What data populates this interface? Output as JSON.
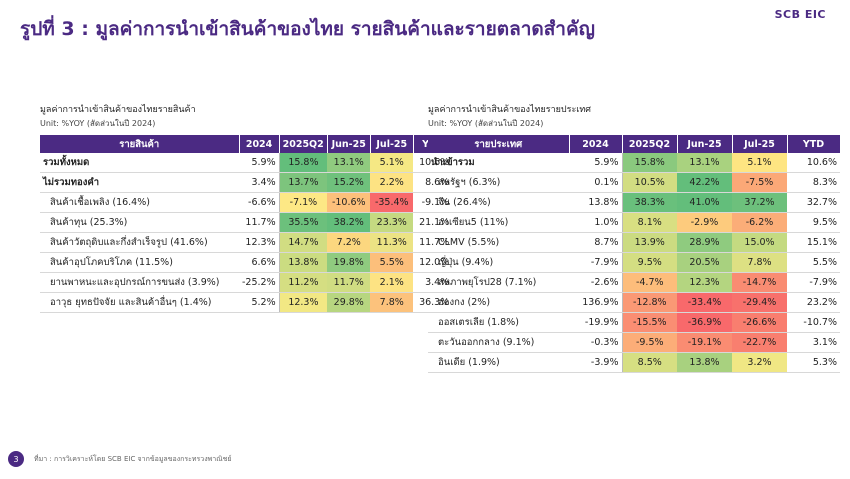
{
  "header": {
    "title": "รูปที่ 3 : มูลค่าการนำเข้าสินค้าของไทย รายสินค้าและรายตลาดสำคัญ",
    "logo": "SCB EIC"
  },
  "left_table": {
    "caption": "มูลค่าการนำเข้าสินค้าของไทยรายสินค้า",
    "unit": "Unit: %YOY (สัดส่วนในปี 2024)",
    "headers": [
      "รายสินค้า",
      "2024",
      "2025Q2",
      "Jun-25",
      "Jul-25",
      "YTD"
    ],
    "rows": [
      {
        "label": "รวมทั้งหมด",
        "bold": true,
        "v2024": "5.9%",
        "q2": "15.8%",
        "jun": "13.1%",
        "jul": "5.1%",
        "ytd": "10.6%",
        "c": [
          "#63be7b",
          "#90cb7f",
          "#f5e884"
        ]
      },
      {
        "label": "ไม่รวมทองคำ",
        "bold": true,
        "v2024": "3.4%",
        "q2": "13.7%",
        "jun": "15.2%",
        "jul": "2.2%",
        "ytd": "8.6%",
        "c": [
          "#7dc47d",
          "#6fc17c",
          "#fde383"
        ]
      },
      {
        "label": "สินค้าเชื้อเพลิง (16.4%)",
        "bold": false,
        "v2024": "-6.6%",
        "q2": "-7.1%",
        "jun": "-10.6%",
        "jul": "-35.4%",
        "ytd": "-9.1%",
        "c": [
          "#fde885",
          "#fcc07b",
          "#f8696b"
        ]
      },
      {
        "label": "สินค้าทุน (25.3%)",
        "bold": false,
        "v2024": "11.7%",
        "q2": "35.5%",
        "jun": "38.2%",
        "jul": "23.3%",
        "ytd": "21.1%",
        "c": [
          "#6cc07c",
          "#63be7b",
          "#c5da81"
        ]
      },
      {
        "label": "สินค้าวัตถุดิบและกึ่งสำเร็จรูป (41.6%)",
        "bold": false,
        "v2024": "12.3%",
        "q2": "14.7%",
        "jun": "7.2%",
        "jul": "11.3%",
        "ytd": "11.7%",
        "c": [
          "#d1dd82",
          "#fcd77f",
          "#ece384"
        ]
      },
      {
        "label": "สินค้าอุปโภคบริโภค (11.5%)",
        "bold": false,
        "v2024": "6.6%",
        "q2": "13.8%",
        "jun": "19.8%",
        "jul": "5.5%",
        "ytd": "12.0%",
        "c": [
          "#cbdc81",
          "#8fcb7f",
          "#fcbf7b"
        ]
      },
      {
        "label": "ยานพาหนะและอุปกรณ์การขนส่ง (3.9%)",
        "bold": false,
        "v2024": "-25.2%",
        "q2": "11.2%",
        "jun": "11.7%",
        "jul": "2.1%",
        "ytd": "3.4%",
        "c": [
          "#d5de82",
          "#d0dd82",
          "#fde383"
        ]
      },
      {
        "label": "อาวุธ ยุทธปัจจัย และสินค้าอื่นๆ (1.4%)",
        "bold": false,
        "v2024": "5.2%",
        "q2": "12.3%",
        "jun": "29.8%",
        "jul": "7.8%",
        "ytd": "36.3%",
        "c": [
          "#f2e884",
          "#b7d680",
          "#fcc27c"
        ]
      }
    ]
  },
  "right_table": {
    "caption": "มูลค่าการนำเข้าสินค้าของไทยรายประเทศ",
    "unit": "Unit: %YOY (สัดส่วนในปี 2024)",
    "headers": [
      "รายประเทศ",
      "2024",
      "2025Q2",
      "Jun-25",
      "Jul-25",
      "YTD"
    ],
    "rows": [
      {
        "label": "นำเข้ารวม",
        "bold": true,
        "v2024": "5.9%",
        "q2": "15.8%",
        "jun": "13.1%",
        "jul": "5.1%",
        "ytd": "10.6%",
        "c": [
          "#8ac97e",
          "#a9d27f",
          "#fee582"
        ]
      },
      {
        "label": "สหรัฐฯ (6.3%)",
        "bold": false,
        "v2024": "0.1%",
        "q2": "10.5%",
        "jun": "42.2%",
        "jul": "-7.5%",
        "ytd": "8.3%",
        "c": [
          "#d2dd82",
          "#63be7b",
          "#fba877"
        ]
      },
      {
        "label": "จีน (26.4%)",
        "bold": false,
        "v2024": "13.8%",
        "q2": "38.3%",
        "jun": "41.0%",
        "jul": "37.2%",
        "ytd": "32.7%",
        "c": [
          "#69c07c",
          "#63be7b",
          "#6dc07c"
        ]
      },
      {
        "label": "อาเซียน5 (11%)",
        "bold": false,
        "v2024": "1.0%",
        "q2": "8.1%",
        "jun": "-2.9%",
        "jul": "-6.2%",
        "ytd": "9.5%",
        "c": [
          "#d8df82",
          "#fdcb7d",
          "#fbad78"
        ]
      },
      {
        "label": "CLMV (5.5%)",
        "bold": false,
        "v2024": "8.7%",
        "q2": "13.9%",
        "jun": "28.9%",
        "jul": "15.0%",
        "ytd": "15.1%",
        "c": [
          "#cbdb81",
          "#8fcb7f",
          "#c4da81"
        ]
      },
      {
        "label": "ญี่ปุ่น (9.4%)",
        "bold": false,
        "v2024": "-7.9%",
        "q2": "9.5%",
        "jun": "20.5%",
        "jul": "7.8%",
        "ytd": "5.5%",
        "c": [
          "#d4de82",
          "#a8d17f",
          "#dde083"
        ]
      },
      {
        "label": "สหภาพยุโรป28 (7.1%)",
        "bold": false,
        "v2024": "-2.6%",
        "q2": "-4.7%",
        "jun": "12.3%",
        "jul": "-14.7%",
        "ytd": "-7.9%",
        "c": [
          "#fdbd7b",
          "#b4d580",
          "#f98c72"
        ]
      },
      {
        "label": "ฮ่องกง (2%)",
        "bold": false,
        "v2024": "136.9%",
        "q2": "-12.8%",
        "jun": "-33.4%",
        "jul": "-29.4%",
        "ytd": "23.2%",
        "c": [
          "#fa9975",
          "#f8696b",
          "#f8716c"
        ]
      },
      {
        "label": "ออสเตรเลีย (1.8%)",
        "bold": false,
        "v2024": "-19.9%",
        "q2": "-15.5%",
        "jun": "-36.9%",
        "jul": "-26.6%",
        "ytd": "-10.7%",
        "c": [
          "#fa8e73",
          "#f8696b",
          "#f97e6f"
        ]
      },
      {
        "label": "ตะวันออกกลาง (9.1%)",
        "bold": false,
        "v2024": "-0.3%",
        "q2": "-9.5%",
        "jun": "-19.1%",
        "jul": "-22.7%",
        "ytd": "3.1%",
        "c": [
          "#fcad78",
          "#fa8c72",
          "#f97f6f"
        ]
      },
      {
        "label": "อินเดีย (1.9%)",
        "bold": false,
        "v2024": "-3.9%",
        "q2": "8.5%",
        "jun": "13.8%",
        "jul": "3.2%",
        "ytd": "5.3%",
        "c": [
          "#d6df82",
          "#a8d17f",
          "#f0e784"
        ]
      }
    ]
  },
  "footer": {
    "page": "3",
    "source": "ที่มา : การวิเคราะห์โดย SCB EIC จากข้อมูลของกระทรวงพาณิชย์"
  }
}
